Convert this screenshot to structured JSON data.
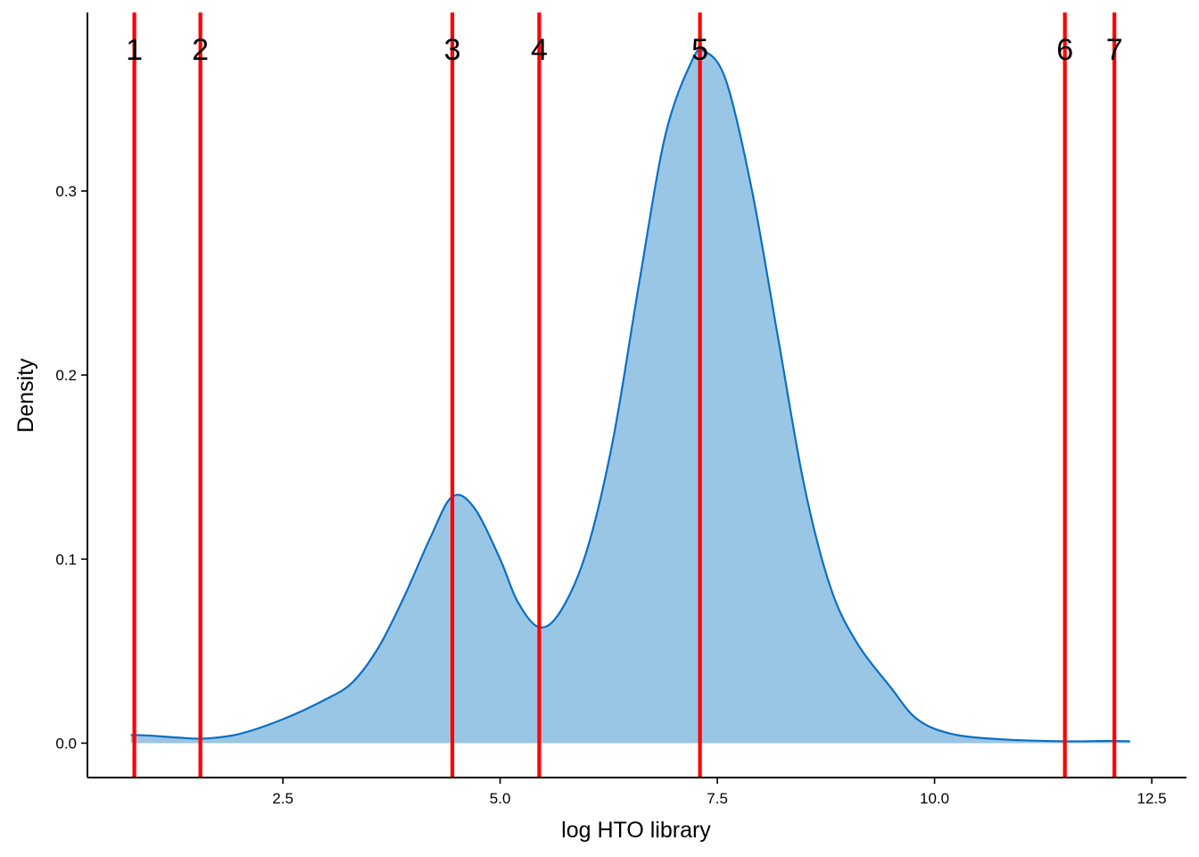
{
  "chart_data": {
    "type": "area",
    "xlabel": "log HTO library",
    "ylabel": "Density",
    "xlim": [
      0.25,
      12.9
    ],
    "ylim": [
      -0.0187,
      0.397
    ],
    "xticks": [
      2.5,
      5.0,
      7.5,
      10.0,
      12.5
    ],
    "xtick_labels": [
      "2.5",
      "5.0",
      "7.5",
      "10.0",
      "12.5"
    ],
    "yticks": [
      0.0,
      0.1,
      0.2,
      0.3
    ],
    "ytick_labels": [
      "0.0",
      "0.1",
      "0.2",
      "0.3"
    ],
    "grid": false,
    "legend": "none",
    "colors": {
      "fill": "#9AC6E6",
      "line": "#0A6FC2",
      "vline": "#FF0000"
    },
    "density": {
      "x": [
        0.75,
        1.0,
        1.3,
        1.6,
        2.0,
        2.5,
        3.0,
        3.3,
        3.6,
        3.9,
        4.2,
        4.45,
        4.7,
        5.0,
        5.2,
        5.45,
        5.7,
        6.0,
        6.3,
        6.6,
        6.9,
        7.2,
        7.35,
        7.6,
        7.9,
        8.2,
        8.5,
        8.8,
        9.1,
        9.5,
        9.8,
        10.2,
        10.8,
        11.5,
        12.0,
        12.25
      ],
      "y": [
        0.0045,
        0.004,
        0.003,
        0.0025,
        0.005,
        0.013,
        0.024,
        0.033,
        0.052,
        0.08,
        0.112,
        0.134,
        0.128,
        0.1,
        0.077,
        0.063,
        0.072,
        0.105,
        0.165,
        0.25,
        0.33,
        0.37,
        0.376,
        0.36,
        0.3,
        0.22,
        0.14,
        0.085,
        0.055,
        0.03,
        0.013,
        0.005,
        0.002,
        0.001,
        0.0012,
        0.001
      ]
    },
    "vlines": [
      {
        "label": "1",
        "x": 0.79
      },
      {
        "label": "2",
        "x": 1.55
      },
      {
        "label": "3",
        "x": 4.45
      },
      {
        "label": "4",
        "x": 5.45
      },
      {
        "label": "5",
        "x": 7.3
      },
      {
        "label": "6",
        "x": 11.5
      },
      {
        "label": "7",
        "x": 12.07
      }
    ]
  }
}
